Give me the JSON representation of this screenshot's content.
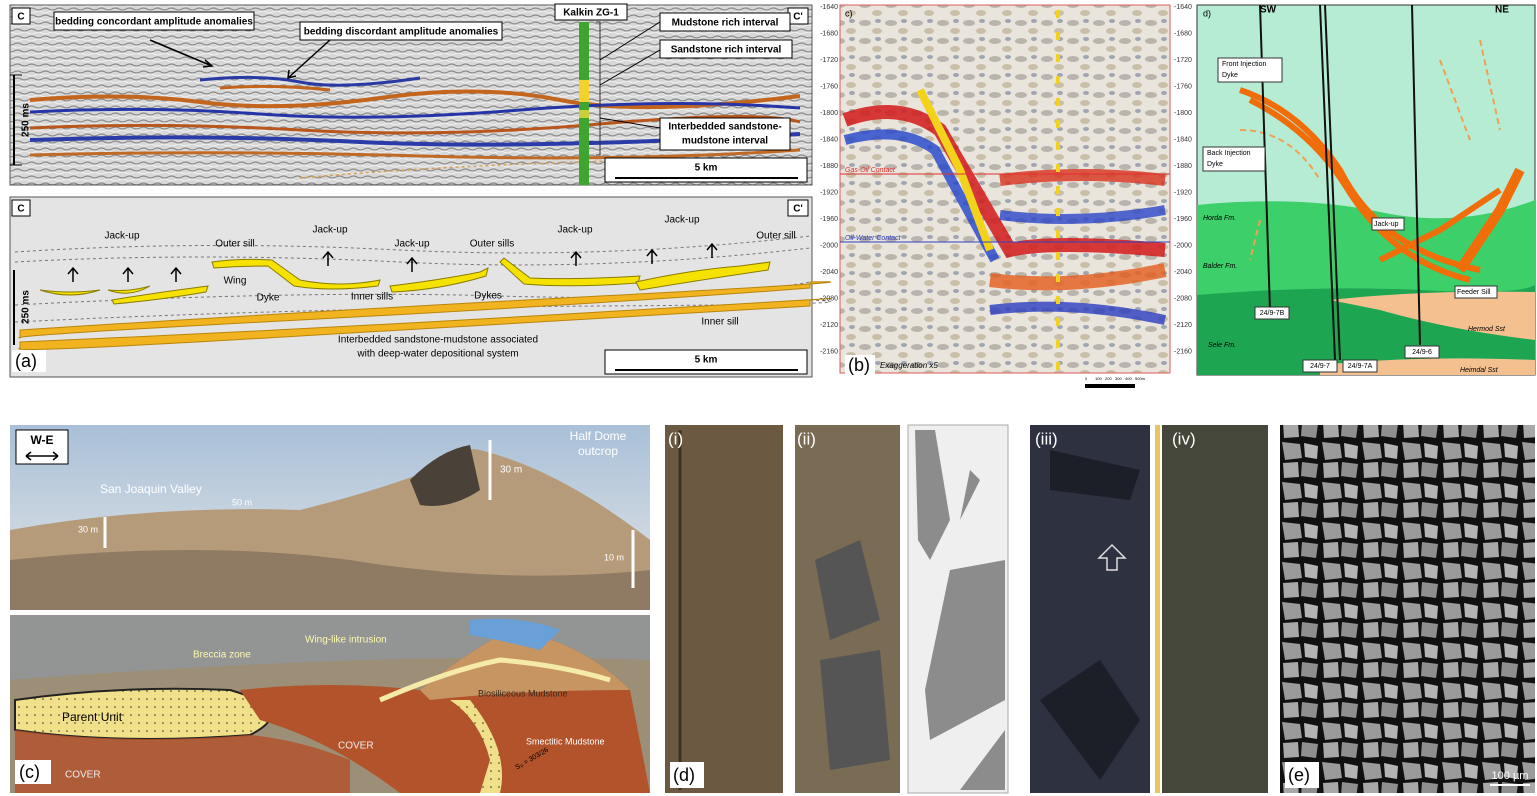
{
  "panel_a": {
    "label": "(a)",
    "seismic": {
      "left": "C",
      "right": "C'",
      "well": "Kalkin ZG-1",
      "concordant": "bedding concordant amplitude anomalies",
      "discordant": "bedding discordant amplitude anomalies",
      "mudstone": "Mudstone rich interval",
      "sandstone": "Sandstone rich interval",
      "interbedded": [
        "Interbedded sandstone-",
        "mudstone interval"
      ],
      "time_scale": "250 ms",
      "distance_scale": "5 km"
    },
    "interpretation": {
      "left": "C",
      "right": "C'",
      "jack_up": [
        "Jack-up",
        "Jack-up",
        "Jack-up",
        "Jack-up",
        "Jack-up"
      ],
      "outer_sill_left": "Outer sill",
      "outer_sills": "Outer sills",
      "outer_sill_right": "Outer sill",
      "wing": "Wing",
      "dyke": "Dyke",
      "inner_sills": "Inner sills",
      "dykes": "Dykes",
      "inner_sill": "Inner sill",
      "description": [
        "Interbedded sandstone-mudstone associated",
        "with deep-water depositional system"
      ],
      "time_scale": "250 ms",
      "distance_scale": "5 km"
    }
  },
  "panel_b": {
    "label": "(b)",
    "inset_label": "c)",
    "depths": [
      "-1640",
      "-1680",
      "-1720",
      "-1760",
      "-1800",
      "-1840",
      "-1880",
      "-1920",
      "-1960",
      "-2000",
      "-2040",
      "-2080",
      "-2120",
      "-2160"
    ],
    "gas_oil_contact": "Gas-Oil Contact",
    "oil_water_contact": "Oil-Water Contact",
    "exaggeration": "Exaggeration x5",
    "scale": [
      "0",
      "100",
      "200",
      "300",
      "400",
      "500m"
    ]
  },
  "panel_d_top": {
    "label": "d)",
    "sw": "SW",
    "ne": "NE",
    "front_dyke": [
      "Front Injection",
      "Dyke"
    ],
    "back_dyke": [
      "Back Injection",
      "Dyke"
    ],
    "jack_up": "Jack-up",
    "horda": "Horda Fm.",
    "balder": "Balder Fm.",
    "sele": "Sele Fm.",
    "feeder_sill": "Feeder Sill",
    "hermod": "Hermod Sst",
    "heimdal": "Heimdal Sst",
    "wells": [
      "24/9-7B",
      "24/9-7",
      "24/9-7A",
      "24/9-6"
    ]
  },
  "panel_c": {
    "label": "(c)",
    "direction": "W-E",
    "half_dome": [
      "Half Dome",
      "outcrop"
    ],
    "valley": "San Joaquin Valley",
    "scale_30a": "30 m",
    "scale_50": "50 m",
    "scale_30b": "30 m",
    "scale_10": "10 m",
    "wing_intrusion": "Wing-like intrusion",
    "breccia": "Breccia zone",
    "biosiliceous": "Biosiliceous Mudstone",
    "parent": "Parent Unit",
    "cover_1": "COVER",
    "cover_2": "COVER",
    "smectitic": "Smectitic Mudstone",
    "orientation": "S₀ = 303/26"
  },
  "panel_d": {
    "label": "(d)",
    "cores": [
      "(i)",
      "(ii)",
      "(iii)",
      "(iv)"
    ]
  },
  "panel_e": {
    "label": "(e)",
    "scale": "100 µm"
  }
}
